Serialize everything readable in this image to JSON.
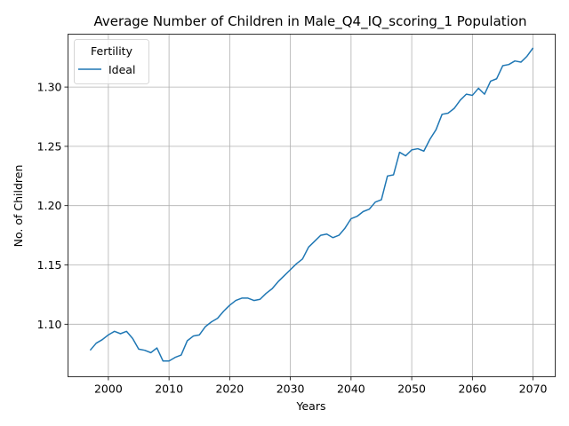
{
  "chart_data": {
    "type": "line",
    "title": "Average Number of Children in Male_Q4_IQ_scoring_1 Population",
    "xlabel": "Years",
    "ylabel": "No. of Children",
    "xlim": [
      1993.35,
      2073.65
    ],
    "ylim": [
      1.0557,
      1.3446
    ],
    "xticks": [
      2000,
      2010,
      2020,
      2030,
      2040,
      2050,
      2060,
      2070
    ],
    "yticks": [
      1.1,
      1.15,
      1.2,
      1.25,
      1.3
    ],
    "grid": true,
    "legend": {
      "title": "Fertility",
      "placement": "top-left"
    },
    "series": [
      {
        "name": "Ideal",
        "color": "#1f77b4",
        "x": [
          1997,
          1998,
          1999,
          2000,
          2001,
          2002,
          2003,
          2004,
          2005,
          2006,
          2007,
          2008,
          2009,
          2010,
          2011,
          2012,
          2013,
          2014,
          2015,
          2016,
          2017,
          2018,
          2019,
          2020,
          2021,
          2022,
          2023,
          2024,
          2025,
          2026,
          2027,
          2028,
          2029,
          2030,
          2031,
          2032,
          2033,
          2034,
          2035,
          2036,
          2037,
          2038,
          2039,
          2040,
          2041,
          2042,
          2043,
          2044,
          2045,
          2046,
          2047,
          2048,
          2049,
          2050,
          2051,
          2052,
          2053,
          2054,
          2055,
          2056,
          2057,
          2058,
          2059,
          2060,
          2061,
          2062,
          2063,
          2064,
          2065,
          2066,
          2067,
          2068,
          2069,
          2070
        ],
        "values": [
          1.078,
          1.084,
          1.087,
          1.091,
          1.094,
          1.092,
          1.094,
          1.088,
          1.079,
          1.078,
          1.076,
          1.08,
          1.069,
          1.069,
          1.072,
          1.074,
          1.086,
          1.09,
          1.091,
          1.098,
          1.102,
          1.105,
          1.111,
          1.116,
          1.12,
          1.122,
          1.122,
          1.12,
          1.121,
          1.126,
          1.13,
          1.136,
          1.141,
          1.146,
          1.151,
          1.155,
          1.165,
          1.17,
          1.175,
          1.176,
          1.173,
          1.175,
          1.181,
          1.189,
          1.191,
          1.195,
          1.197,
          1.203,
          1.205,
          1.225,
          1.226,
          1.245,
          1.242,
          1.247,
          1.248,
          1.246,
          1.256,
          1.264,
          1.277,
          1.278,
          1.282,
          1.289,
          1.294,
          1.293,
          1.299,
          1.294,
          1.305,
          1.307,
          1.318,
          1.319,
          1.322,
          1.321,
          1.326,
          1.333
        ]
      }
    ]
  }
}
